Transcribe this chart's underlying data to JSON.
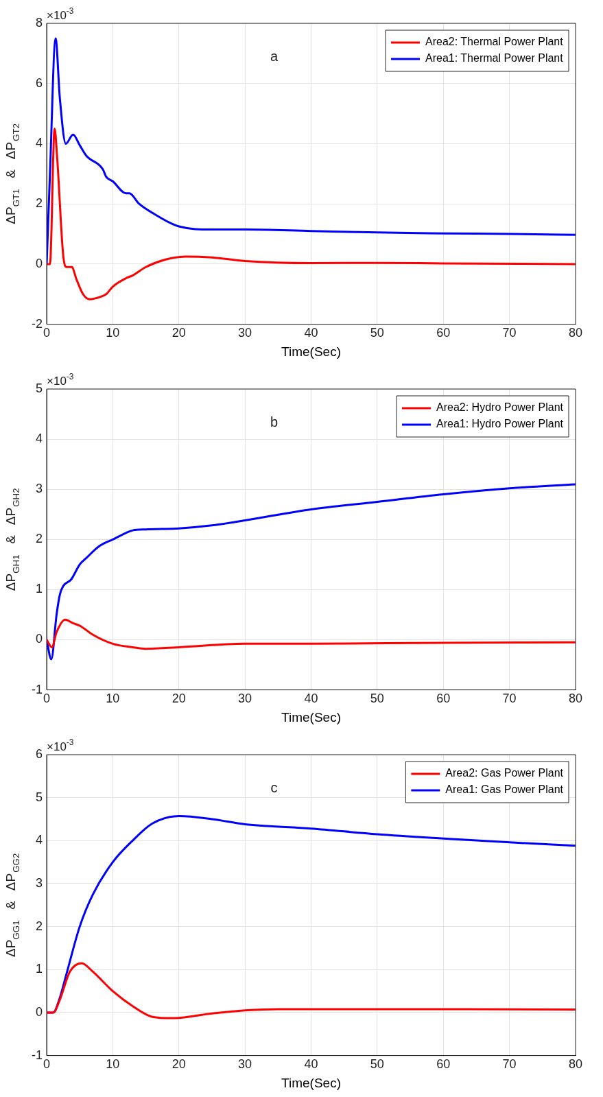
{
  "chart_data": [
    {
      "type": "line",
      "xlabel": "Time(Sec)",
      "ylabel": "ΔP$_{GT1}$   &   ΔP$_{GT2}$",
      "annotations": [
        "×10$^{-3}$",
        "a"
      ],
      "xlim": [
        0,
        80
      ],
      "xticks": [
        0,
        10,
        20,
        30,
        40,
        50,
        60,
        70,
        80
      ],
      "ylim": [
        -2,
        8
      ],
      "yticks": [
        -2,
        0,
        2,
        4,
        6,
        8
      ],
      "grid": true,
      "legend": "top right",
      "marker": "none",
      "line_style": "solid",
      "series": [
        {
          "name": "Area2: Thermal Power Plant",
          "color": "#ff0000",
          "x": [
            0,
            0.5,
            1.2,
            1.6,
            2.5,
            3,
            3.8,
            4.5,
            5.5,
            6.5,
            8,
            9,
            10,
            12,
            13,
            15,
            18,
            21,
            25,
            30,
            40,
            50,
            60,
            80
          ],
          "values": [
            0,
            0,
            4.5,
            3.5,
            0.3,
            -0.1,
            -0.1,
            -0.5,
            -1,
            -1.17,
            -1.1,
            -1,
            -0.75,
            -0.47,
            -0.38,
            -0.1,
            0.15,
            0.25,
            0.22,
            0.1,
            0.03,
            0.04,
            0.02,
            0
          ]
        },
        {
          "name": "Area1: Thermal Power Plant",
          "color": "#0000ff",
          "x": [
            0,
            0.5,
            1.35,
            2,
            2.9,
            4,
            5,
            6,
            8.5,
            9,
            10,
            12,
            12.5,
            14,
            16,
            20,
            25,
            30,
            40,
            50,
            60,
            70,
            80
          ],
          "values": [
            0,
            3,
            7.5,
            5.5,
            4,
            4.3,
            3.95,
            3.6,
            3.15,
            2.9,
            2.75,
            2.35,
            2.35,
            2,
            1.7,
            1.25,
            1.15,
            1.15,
            1.1,
            1.05,
            1.02,
            1,
            0.97
          ]
        }
      ]
    },
    {
      "type": "line",
      "xlabel": "Time(Sec)",
      "ylabel": "ΔP$_{GH1}$   &   ΔP$_{GH2}$",
      "annotations": [
        "×10$^{-3}$",
        "b"
      ],
      "xlim": [
        0,
        80
      ],
      "xticks": [
        0,
        10,
        20,
        30,
        40,
        50,
        60,
        70,
        80
      ],
      "ylim": [
        -1,
        5
      ],
      "yticks": [
        -1,
        0,
        1,
        2,
        3,
        4,
        5
      ],
      "grid": true,
      "legend": "top right",
      "marker": "none",
      "line_style": "solid",
      "series": [
        {
          "name": "Area2: Hydro Power Plant",
          "color": "#ff0000",
          "x": [
            0,
            0.8,
            1.5,
            2.8,
            4,
            5,
            7,
            10,
            13,
            15,
            20,
            30,
            40,
            60,
            80
          ],
          "values": [
            0,
            -0.15,
            0.15,
            0.4,
            0.33,
            0.28,
            0.1,
            -0.08,
            -0.15,
            -0.18,
            -0.15,
            -0.08,
            -0.08,
            -0.06,
            -0.05
          ]
        },
        {
          "name": "Area1: Hydro Power Plant",
          "color": "#0000ff",
          "x": [
            0,
            0.7,
            1.5,
            2,
            2.5,
            3.7,
            5,
            6,
            8,
            10,
            12,
            13,
            15,
            20,
            25,
            30,
            40,
            50,
            60,
            70,
            80
          ],
          "values": [
            0,
            -0.39,
            0.5,
            0.9,
            1.07,
            1.2,
            1.5,
            1.63,
            1.87,
            2,
            2.13,
            2.18,
            2.2,
            2.22,
            2.28,
            2.38,
            2.6,
            2.75,
            2.9,
            3.02,
            3.1
          ]
        }
      ]
    },
    {
      "type": "line",
      "xlabel": "Time(Sec)",
      "ylabel": "ΔP$_{GG1}$   &   ΔP$_{GG2}$",
      "annotations": [
        "×10$^{-3}$",
        "c"
      ],
      "xlim": [
        0,
        80
      ],
      "xticks": [
        0,
        10,
        20,
        30,
        40,
        50,
        60,
        70,
        80
      ],
      "ylim": [
        -1,
        6
      ],
      "yticks": [
        -1,
        0,
        1,
        2,
        3,
        4,
        5,
        6
      ],
      "grid": true,
      "legend": "top right",
      "marker": "none",
      "line_style": "solid",
      "series": [
        {
          "name": "Area2: Gas Power Plant",
          "color": "#ff0000",
          "x": [
            0,
            1,
            2,
            3.5,
            5.3,
            7,
            10,
            13,
            16,
            19,
            25,
            30,
            35,
            40,
            60,
            80
          ],
          "values": [
            0,
            0,
            0.3,
            0.95,
            1.15,
            0.95,
            0.5,
            0.15,
            -0.1,
            -0.13,
            -0.02,
            0.05,
            0.08,
            0.08,
            0.08,
            0.07
          ]
        },
        {
          "name": "Area1: Gas Power Plant",
          "color": "#0000ff",
          "x": [
            0,
            1,
            1.9,
            3,
            5,
            7,
            10,
            13,
            16,
            20,
            25,
            30,
            40,
            50,
            60,
            70,
            80
          ],
          "values": [
            0,
            0,
            0.3,
            0.9,
            2,
            2.75,
            3.5,
            4,
            4.4,
            4.57,
            4.5,
            4.38,
            4.28,
            4.15,
            4.05,
            3.96,
            3.88
          ]
        }
      ]
    }
  ]
}
